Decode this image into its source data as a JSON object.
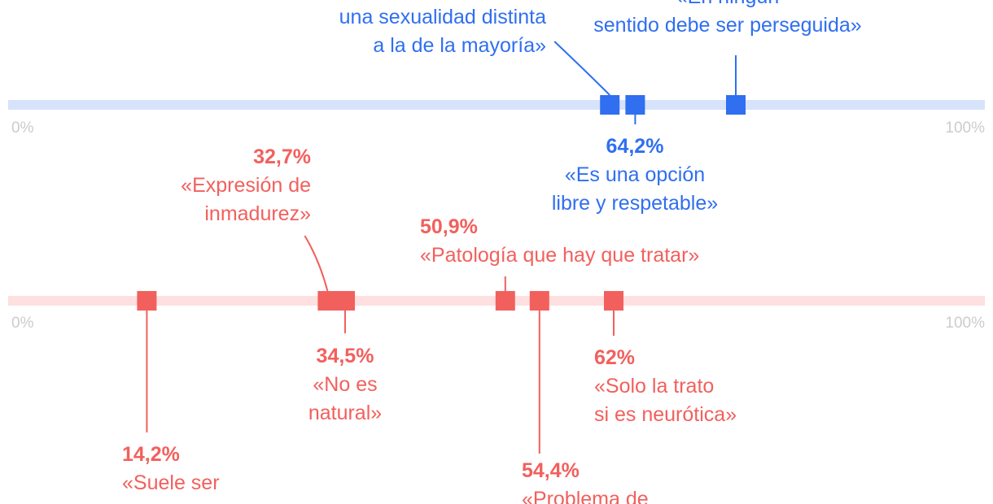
{
  "chart_data": {
    "type": "dot-strip",
    "axis": {
      "min_label": "0%",
      "max_label": "100%",
      "min": 0,
      "max": 100
    },
    "colors": {
      "blue": "#2f6ff0",
      "blue_track": "#d6e3fb",
      "red": "#f2605d",
      "red_track": "#fde0df",
      "axis_text": "#cccccc"
    },
    "series": [
      {
        "points": [
          {
            "value": 61.6,
            "pct_label": "",
            "line1": "una sexualidad distinta",
            "line2": "a la de la mayoría»"
          },
          {
            "value": 64.2,
            "pct_label": "64,2%",
            "line1": "«Es una opción",
            "line2": "libre y respetable»"
          },
          {
            "value": 74.5,
            "pct_label": "",
            "line1": "«En ningún",
            "line2": "sentido debe ser perseguida»"
          }
        ]
      },
      {
        "points": [
          {
            "value": 14.2,
            "pct_label": "14,2%",
            "line1": "«Suele ser",
            "line2": ""
          },
          {
            "value": 32.7,
            "pct_label": "32,7%",
            "line1": "«Expresión de",
            "line2": "inmadurez»"
          },
          {
            "value": 34.5,
            "pct_label": "34,5%",
            "line1": "«No es",
            "line2": "natural»"
          },
          {
            "value": 50.9,
            "pct_label": "50,9%",
            "line1": "«Patología que hay que tratar»",
            "line2": ""
          },
          {
            "value": 54.4,
            "pct_label": "54,4%",
            "line1": "«Problema de",
            "line2": ""
          },
          {
            "value": 62.0,
            "pct_label": "62%",
            "line1": "«Solo la trato",
            "line2": "si es neurótica»"
          }
        ]
      }
    ]
  }
}
